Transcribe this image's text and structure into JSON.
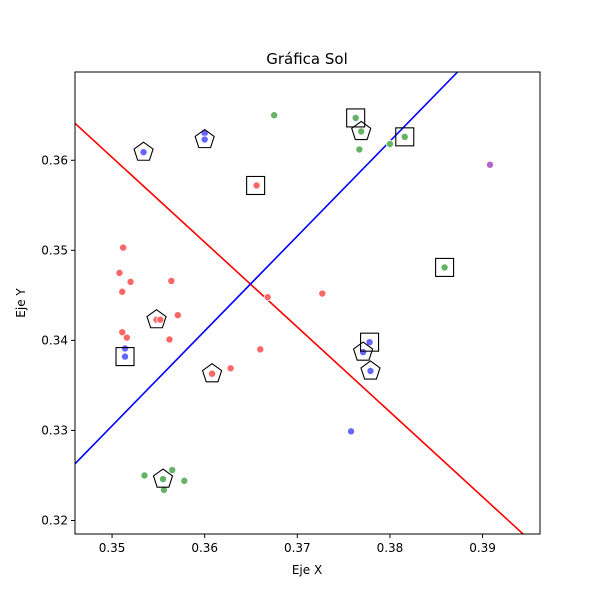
{
  "chart_data": {
    "type": "scatter",
    "title": "Gráfica Sol",
    "xlabel": "Eje X",
    "ylabel": "Eje Y",
    "xlim": [
      0.346,
      0.3962
    ],
    "ylim": [
      0.3185,
      0.3698
    ],
    "grid": false,
    "x_ticks": [
      0.35,
      0.36,
      0.37,
      0.38,
      0.39
    ],
    "x_tick_labels": [
      "0.35",
      "0.36",
      "0.37",
      "0.38",
      "0.39"
    ],
    "y_ticks": [
      0.32,
      0.33,
      0.34,
      0.35,
      0.36
    ],
    "y_tick_labels": [
      "0.32",
      "0.33",
      "0.34",
      "0.35",
      "0.36"
    ],
    "series": [
      {
        "name": "red",
        "color": "#ff6666",
        "points": [
          [
            0.3512,
            0.3503
          ],
          [
            0.3508,
            0.3475
          ],
          [
            0.352,
            0.3465
          ],
          [
            0.3511,
            0.3454
          ],
          [
            0.3564,
            0.3466
          ],
          [
            0.3548,
            0.3423
          ],
          [
            0.3552,
            0.3423
          ],
          [
            0.3571,
            0.3428
          ],
          [
            0.3511,
            0.3409
          ],
          [
            0.3516,
            0.3403
          ],
          [
            0.3562,
            0.3401
          ],
          [
            0.3608,
            0.3363
          ],
          [
            0.3628,
            0.3369
          ],
          [
            0.366,
            0.339
          ],
          [
            0.3668,
            0.3448
          ],
          [
            0.3727,
            0.3452
          ],
          [
            0.3656,
            0.3572
          ]
        ]
      },
      {
        "name": "blue",
        "color": "#6666ff",
        "points": [
          [
            0.3534,
            0.3609
          ],
          [
            0.36,
            0.363
          ],
          [
            0.36,
            0.3623
          ],
          [
            0.3514,
            0.3391
          ],
          [
            0.3514,
            0.3382
          ],
          [
            0.3758,
            0.3299
          ],
          [
            0.3778,
            0.3398
          ],
          [
            0.3771,
            0.3387
          ],
          [
            0.3779,
            0.3366
          ]
        ]
      },
      {
        "name": "green",
        "color": "#66b366",
        "points": [
          [
            0.3675,
            0.365
          ],
          [
            0.3763,
            0.3647
          ],
          [
            0.3769,
            0.3632
          ],
          [
            0.3767,
            0.3612
          ],
          [
            0.38,
            0.3618
          ],
          [
            0.3816,
            0.3626
          ],
          [
            0.3859,
            0.3481
          ],
          [
            0.3535,
            0.325
          ],
          [
            0.3565,
            0.3256
          ],
          [
            0.3555,
            0.3246
          ],
          [
            0.3556,
            0.3234
          ],
          [
            0.3578,
            0.3244
          ]
        ]
      },
      {
        "name": "purple",
        "color": "#b366cc",
        "points": [
          [
            0.3908,
            0.3595
          ]
        ]
      }
    ],
    "square_markers": [
      [
        0.3655,
        0.3572
      ],
      [
        0.3763,
        0.3647
      ],
      [
        0.3816,
        0.3626
      ],
      [
        0.3859,
        0.3481
      ],
      [
        0.3778,
        0.3398
      ],
      [
        0.3514,
        0.3382
      ]
    ],
    "pentagon_markers": [
      [
        0.3534,
        0.3609
      ],
      [
        0.36,
        0.3623
      ],
      [
        0.3769,
        0.3632
      ],
      [
        0.3548,
        0.3423
      ],
      [
        0.3771,
        0.3387
      ],
      [
        0.3779,
        0.3366
      ],
      [
        0.3608,
        0.3363
      ],
      [
        0.3555,
        0.3246
      ]
    ],
    "lines": [
      {
        "name": "red-line",
        "color": "#ff0000",
        "points": [
          [
            0.346,
            0.3641
          ],
          [
            0.3948,
            0.3181
          ]
        ]
      },
      {
        "name": "blue-line",
        "color": "#0000ff",
        "points": [
          [
            0.346,
            0.3263
          ],
          [
            0.3873,
            0.3698
          ]
        ]
      }
    ]
  }
}
